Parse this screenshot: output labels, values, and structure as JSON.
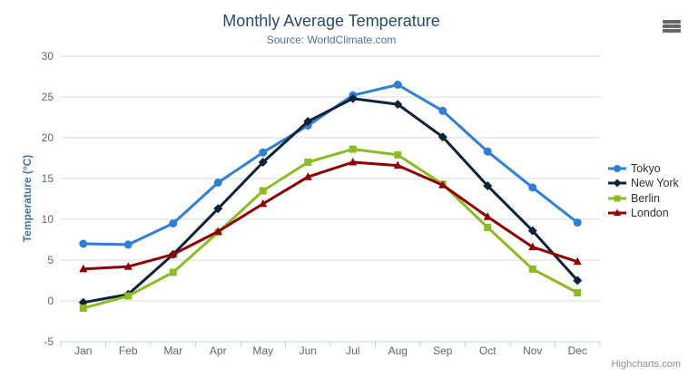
{
  "chart_data": {
    "type": "line",
    "title": "Monthly Average Temperature",
    "subtitle": "Source: WorldClimate.com",
    "xlabel": "",
    "ylabel": "Temperature (°C)",
    "categories": [
      "Jan",
      "Feb",
      "Mar",
      "Apr",
      "May",
      "Jun",
      "Jul",
      "Aug",
      "Sep",
      "Oct",
      "Nov",
      "Dec"
    ],
    "yticks": [
      -5,
      0,
      5,
      10,
      15,
      20,
      25,
      30
    ],
    "ylim": [
      -5,
      30
    ],
    "grid": true,
    "legend_position": "right",
    "series": [
      {
        "name": "Tokyo",
        "color": "#2f7ed8",
        "marker": "circle",
        "values": [
          7.0,
          6.9,
          9.5,
          14.5,
          18.2,
          21.5,
          25.2,
          26.5,
          23.3,
          18.3,
          13.9,
          9.6
        ]
      },
      {
        "name": "New York",
        "color": "#0d233a",
        "marker": "diamond",
        "values": [
          -0.2,
          0.8,
          5.7,
          11.3,
          17.0,
          22.0,
          24.8,
          24.1,
          20.1,
          14.1,
          8.6,
          2.5
        ]
      },
      {
        "name": "Berlin",
        "color": "#8bbc21",
        "marker": "square",
        "values": [
          -0.9,
          0.6,
          3.5,
          8.4,
          13.5,
          17.0,
          18.6,
          17.9,
          14.3,
          9.0,
          3.9,
          1.0
        ]
      },
      {
        "name": "London",
        "color": "#910000",
        "marker": "triangle",
        "values": [
          3.9,
          4.2,
          5.7,
          8.5,
          11.9,
          15.2,
          17.0,
          16.6,
          14.2,
          10.3,
          6.6,
          4.8
        ]
      }
    ],
    "credit": "Highcharts.com"
  },
  "icons": {
    "export_menu": "hamburger-icon"
  },
  "colors": {
    "background": "#ffffff",
    "title": "#274b6d",
    "subtitle": "#4d759e",
    "axis_title": "#4572a7",
    "axis_labels": "#666666",
    "grid_line": "#d8d8d8",
    "axis_line": "#c0d0e0",
    "legend_text": "#333333",
    "credit_text": "#909090",
    "export_icon": "#666666"
  }
}
